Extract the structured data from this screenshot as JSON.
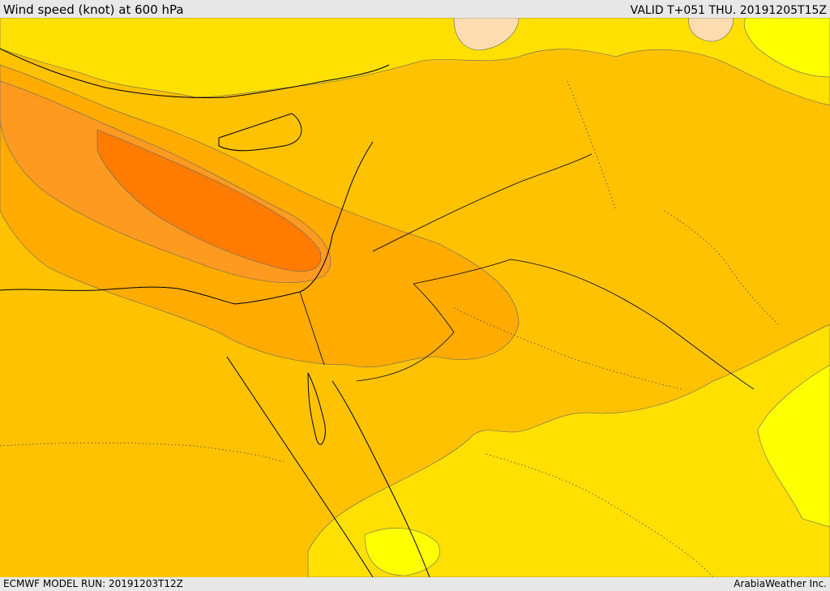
{
  "header": {
    "title": "Wind speed (knot) at 600 hPa",
    "valid": "VALID T+051 THU. 20191205T15Z"
  },
  "footer": {
    "model_run": "ECMWF MODEL RUN: 20191203T12Z",
    "credit": "ArabiaWeather Inc."
  },
  "palette": {
    "speed_lowest": "#ffff00",
    "speed_low": "#ffe000",
    "speed_mid": "#ffc200",
    "speed_high": "#ffab00",
    "speed_higher": "#ff9a20",
    "speed_max": "#ff7c00",
    "calm_patch": "#fddcb0",
    "coastline": "#000000",
    "border": "#000000",
    "contour": "#555555"
  }
}
